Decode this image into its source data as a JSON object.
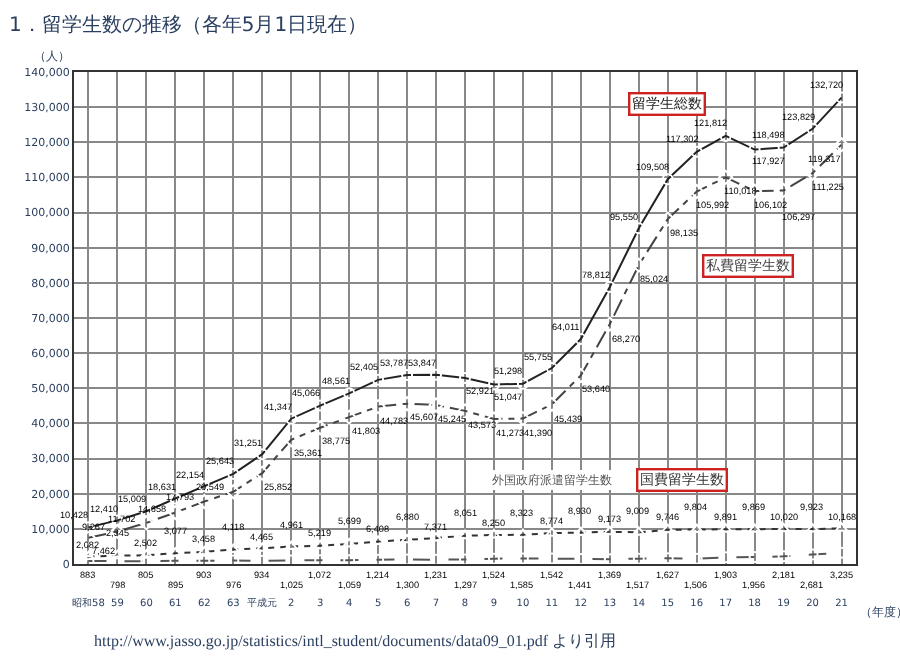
{
  "chart_data": {
    "type": "line",
    "title": "1．留学生数の推移（各年5月1日現在）",
    "ylabel": "（人）",
    "xlabel": "（年度）",
    "categories": [
      "昭和58",
      "59",
      "60",
      "61",
      "62",
      "63",
      "平成元",
      "2",
      "3",
      "4",
      "5",
      "6",
      "7",
      "8",
      "9",
      "10",
      "11",
      "12",
      "13",
      "14",
      "15",
      "16",
      "17",
      "18",
      "19",
      "20",
      "21"
    ],
    "series": [
      {
        "name": "留学生総数",
        "color": "#222222",
        "marker": "circle",
        "line_style": "solid",
        "values": [
          10428,
          12410,
          15009,
          18631,
          22154,
          25643,
          31251,
          41347,
          45066,
          48561,
          52405,
          53787,
          53847,
          52921,
          51047,
          51298,
          55755,
          64011,
          78812,
          95550,
          109508,
          117302,
          121812,
          117927,
          118498,
          123829,
          132720
        ],
        "value_labels": [
          "10,428",
          "12,410",
          "15,009",
          "18,631",
          "22,154",
          "25,643",
          "31,251",
          "41,347",
          "45,066",
          "48,561",
          "52,405",
          "53,787",
          "53,847",
          "52,921",
          "51,047",
          "51,298",
          "55,755",
          "64,011",
          "78,812",
          "95,550",
          "109,508",
          "117,302",
          "121,812",
          "117,927",
          "118,498",
          "123,829",
          "132,720"
        ]
      },
      {
        "name": "私費留学生数",
        "color": "#444444",
        "marker": "diamond",
        "line_style": "dashed",
        "values": [
          7462,
          9267,
          11702,
          14658,
          17793,
          20549,
          25852,
          35361,
          38775,
          41803,
          44783,
          45607,
          45245,
          43573,
          41273,
          41390,
          45439,
          53640,
          68270,
          85024,
          98135,
          105992,
          110018,
          106102,
          106297,
          111225,
          119317
        ],
        "value_labels": [
          "7,462",
          "9,267",
          "11,702",
          "14,658",
          "17,793",
          "20,549",
          "25,852",
          "35,361",
          "38,775",
          "41,803",
          "44,783",
          "45,607",
          "45,245",
          "43,573",
          "41,273",
          "41,390",
          "45,439",
          "53,640",
          "68,270",
          "85,024",
          "98,135",
          "105,992",
          "110,018",
          "106,102",
          "106,297",
          "111,225",
          "119,317"
        ]
      },
      {
        "name": "国費留学生数",
        "color": "#333333",
        "marker": "triangle",
        "line_style": "dotted",
        "values": [
          2082,
          2345,
          2502,
          3077,
          3458,
          4118,
          4465,
          4961,
          5219,
          5699,
          6408,
          6880,
          7371,
          8051,
          8250,
          8323,
          8774,
          8930,
          9173,
          9009,
          9746,
          9804,
          9891,
          9869,
          10020,
          9923,
          10168
        ],
        "value_labels": [
          "2,082",
          "2,345",
          "2,502",
          "3,077",
          "3,458",
          "4,118",
          "4,465",
          "4,961",
          "5,219",
          "5,699",
          "6,408",
          "6,880",
          "7,371",
          "8,051",
          "8,250",
          "8,323",
          "8,774",
          "8,930",
          "9,173",
          "9,009",
          "9,746",
          "9,804",
          "9,891",
          "9,869",
          "10,020",
          "9,923",
          "10,168"
        ]
      },
      {
        "name": "外国政府派遣留学生数",
        "color": "#555555",
        "marker": "circle",
        "line_style": "dashed",
        "values": [
          883,
          798,
          805,
          895,
          903,
          976,
          934,
          1025,
          1072,
          1059,
          1214,
          1300,
          1231,
          1297,
          1524,
          1585,
          1542,
          1441,
          1369,
          1517,
          1627,
          1506,
          1903,
          1956,
          2181,
          2681,
          3235
        ],
        "value_labels": [
          "883",
          "798",
          "805",
          "895",
          "903",
          "976",
          "934",
          "1,025",
          "1,072",
          "1,059",
          "1,214",
          "1,300",
          "1,231",
          "1,297",
          "1,524",
          "1,585",
          "1,542",
          "1,441",
          "1,369",
          "1,517",
          "1,627",
          "1,506",
          "1,903",
          "1,956",
          "2,181",
          "2,681",
          "3,235"
        ]
      }
    ],
    "ylim": [
      0,
      140000
    ],
    "yticks": [
      0,
      {
        "value": 10000,
        "label": "10,000"
      },
      {
        "value": 20000,
        "label": "20,000"
      },
      {
        "value": 30000,
        "label": "30,000"
      },
      {
        "value": 40000,
        "label": "40,000"
      },
      {
        "value": 50000,
        "label": "50,000"
      },
      {
        "value": 60000,
        "label": "60,000"
      },
      {
        "value": 70000,
        "label": "70,000"
      },
      {
        "value": 80000,
        "label": "80,000"
      },
      {
        "value": 90000,
        "label": "90,000"
      },
      {
        "value": 100000,
        "label": "100,000"
      },
      {
        "value": 110000,
        "label": "110,000"
      },
      {
        "value": 120000,
        "label": "120,000"
      },
      {
        "value": 130000,
        "label": "130,000"
      },
      {
        "value": 140000,
        "label": "140,000"
      }
    ],
    "grid": true,
    "legend": false,
    "annotations": [
      "http://www.jasso.go.jp/statistics/intl_student/documents/data09_01.pdf より引用"
    ]
  }
}
